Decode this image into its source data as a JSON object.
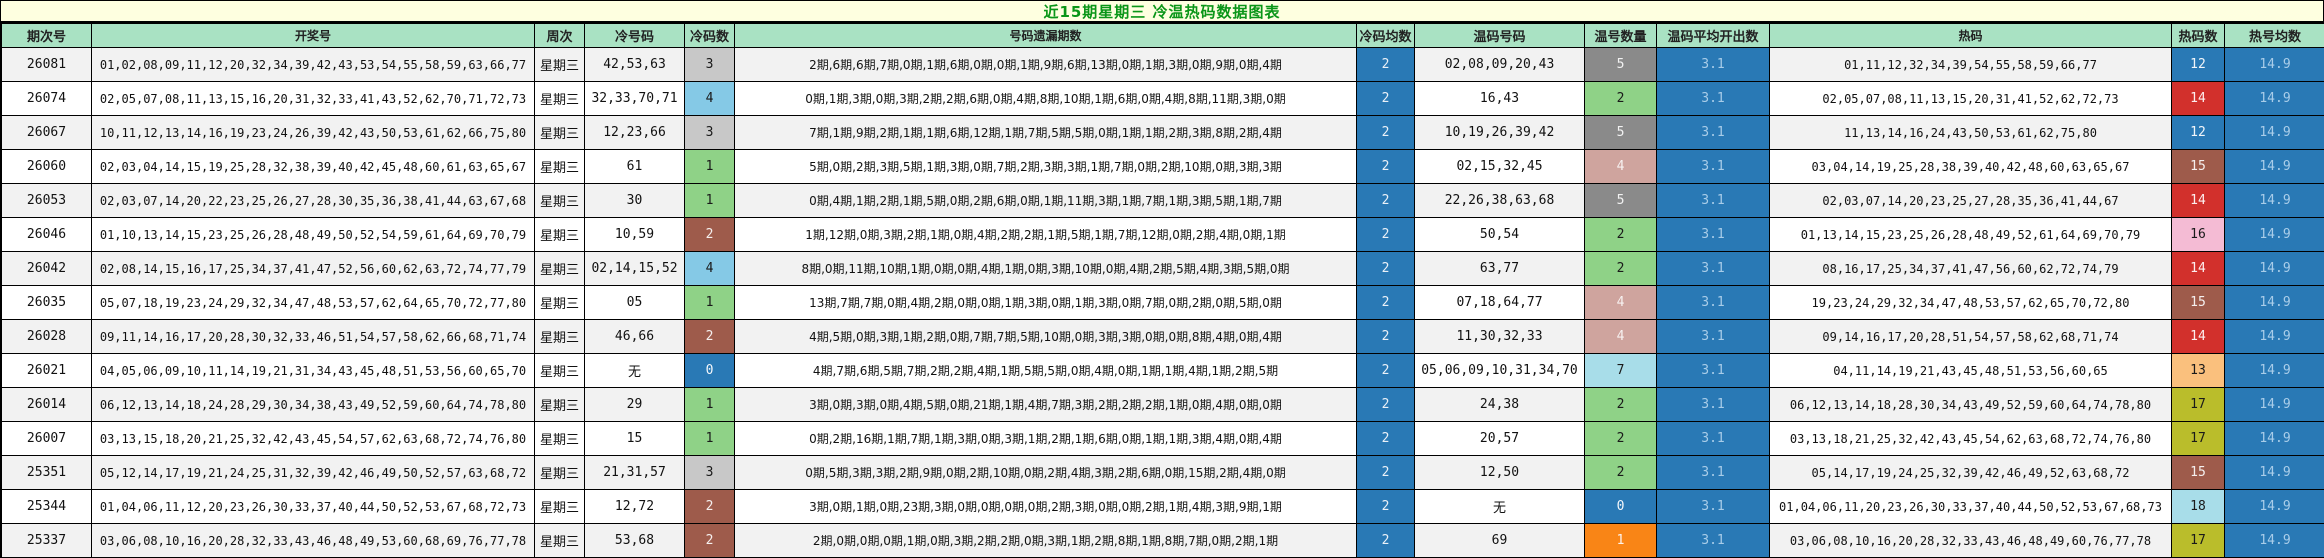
{
  "title": "近15期星期三  冷温热码数据图表",
  "chart_data": {
    "type": "table",
    "title": "近15期星期三  冷温热码数据图表",
    "columns": [
      "期次号",
      "开奖号",
      "周次",
      "冷号码",
      "冷码数",
      "号码遗漏期数",
      "冷码均数",
      "温码号码",
      "温号数量",
      "温码平均开出数",
      "热码",
      "热码数",
      "热号均数"
    ],
    "rows": [
      {
        "period": "26081",
        "draw_numbers": "01,02,08,09,11,12,20,32,34,39,42,43,53,54,55,58,59,63,66,77",
        "week": "星期三",
        "cold_numbers": "42,53,63",
        "cold_count": 3,
        "miss_periods": "2期,6期,6期,7期,0期,1期,6期,0期,0期,1期,9期,6期,13期,0期,1期,3期,0期,9期,0期,4期",
        "cold_avg": "2",
        "warm_numbers": "02,08,09,20,43",
        "warm_count": 5,
        "warm_avg": "3.1",
        "hot_numbers": "01,11,12,32,34,39,54,55,58,59,66,77",
        "hot_count": 12,
        "hot_avg": "14.9"
      },
      {
        "period": "26074",
        "draw_numbers": "02,05,07,08,11,13,15,16,20,31,32,33,41,43,52,62,70,71,72,73",
        "week": "星期三",
        "cold_numbers": "32,33,70,71",
        "cold_count": 4,
        "miss_periods": "0期,1期,3期,0期,3期,2期,2期,6期,0期,4期,8期,10期,1期,6期,0期,4期,8期,11期,3期,0期",
        "cold_avg": "2",
        "warm_numbers": "16,43",
        "warm_count": 2,
        "warm_avg": "3.1",
        "hot_numbers": "02,05,07,08,11,13,15,20,31,41,52,62,72,73",
        "hot_count": 14,
        "hot_avg": "14.9"
      },
      {
        "period": "26067",
        "draw_numbers": "10,11,12,13,14,16,19,23,24,26,39,42,43,50,53,61,62,66,75,80",
        "week": "星期三",
        "cold_numbers": "12,23,66",
        "cold_count": 3,
        "miss_periods": "7期,1期,9期,2期,1期,1期,6期,12期,1期,7期,5期,5期,0期,1期,1期,2期,3期,8期,2期,4期",
        "cold_avg": "2",
        "warm_numbers": "10,19,26,39,42",
        "warm_count": 5,
        "warm_avg": "3.1",
        "hot_numbers": "11,13,14,16,24,43,50,53,61,62,75,80",
        "hot_count": 12,
        "hot_avg": "14.9"
      },
      {
        "period": "26060",
        "draw_numbers": "02,03,04,14,15,19,25,28,32,38,39,40,42,45,48,60,61,63,65,67",
        "week": "星期三",
        "cold_numbers": "61",
        "cold_count": 1,
        "miss_periods": "5期,0期,2期,3期,5期,1期,3期,0期,7期,2期,3期,3期,1期,7期,0期,2期,10期,0期,3期,3期",
        "cold_avg": "2",
        "warm_numbers": "02,15,32,45",
        "warm_count": 4,
        "warm_avg": "3.1",
        "hot_numbers": "03,04,14,19,25,28,38,39,40,42,48,60,63,65,67",
        "hot_count": 15,
        "hot_avg": "14.9"
      },
      {
        "period": "26053",
        "draw_numbers": "02,03,07,14,20,22,23,25,26,27,28,30,35,36,38,41,44,63,67,68",
        "week": "星期三",
        "cold_numbers": "30",
        "cold_count": 1,
        "miss_periods": "0期,4期,1期,2期,1期,5期,0期,2期,6期,0期,1期,11期,3期,1期,7期,1期,3期,5期,1期,7期",
        "cold_avg": "2",
        "warm_numbers": "22,26,38,63,68",
        "warm_count": 5,
        "warm_avg": "3.1",
        "hot_numbers": "02,03,07,14,20,23,25,27,28,35,36,41,44,67",
        "hot_count": 14,
        "hot_avg": "14.9"
      },
      {
        "period": "26046",
        "draw_numbers": "01,10,13,14,15,23,25,26,28,48,49,50,52,54,59,61,64,69,70,79",
        "week": "星期三",
        "cold_numbers": "10,59",
        "cold_count": 2,
        "miss_periods": "1期,12期,0期,3期,2期,1期,0期,4期,2期,2期,1期,5期,1期,7期,12期,0期,2期,4期,0期,1期",
        "cold_avg": "2",
        "warm_numbers": "50,54",
        "warm_count": 2,
        "warm_avg": "3.1",
        "hot_numbers": "01,13,14,15,23,25,26,28,48,49,52,61,64,69,70,79",
        "hot_count": 16,
        "hot_avg": "14.9"
      },
      {
        "period": "26042",
        "draw_numbers": "02,08,14,15,16,17,25,34,37,41,47,52,56,60,62,63,72,74,77,79",
        "week": "星期三",
        "cold_numbers": "02,14,15,52",
        "cold_count": 4,
        "miss_periods": "8期,0期,11期,10期,1期,0期,0期,4期,1期,0期,3期,10期,0期,4期,2期,5期,4期,3期,5期,0期",
        "cold_avg": "2",
        "warm_numbers": "63,77",
        "warm_count": 2,
        "warm_avg": "3.1",
        "hot_numbers": "08,16,17,25,34,37,41,47,56,60,62,72,74,79",
        "hot_count": 14,
        "hot_avg": "14.9"
      },
      {
        "period": "26035",
        "draw_numbers": "05,07,18,19,23,24,29,32,34,47,48,53,57,62,64,65,70,72,77,80",
        "week": "星期三",
        "cold_numbers": "05",
        "cold_count": 1,
        "miss_periods": "13期,7期,7期,0期,4期,2期,0期,0期,1期,3期,0期,1期,3期,0期,7期,0期,2期,0期,5期,0期",
        "cold_avg": "2",
        "warm_numbers": "07,18,64,77",
        "warm_count": 4,
        "warm_avg": "3.1",
        "hot_numbers": "19,23,24,29,32,34,47,48,53,57,62,65,70,72,80",
        "hot_count": 15,
        "hot_avg": "14.9"
      },
      {
        "period": "26028",
        "draw_numbers": "09,11,14,16,17,20,28,30,32,33,46,51,54,57,58,62,66,68,71,74",
        "week": "星期三",
        "cold_numbers": "46,66",
        "cold_count": 2,
        "miss_periods": "4期,5期,0期,3期,1期,2期,0期,7期,7期,5期,10期,0期,3期,3期,0期,0期,8期,4期,0期,4期",
        "cold_avg": "2",
        "warm_numbers": "11,30,32,33",
        "warm_count": 4,
        "warm_avg": "3.1",
        "hot_numbers": "09,14,16,17,20,28,51,54,57,58,62,68,71,74",
        "hot_count": 14,
        "hot_avg": "14.9"
      },
      {
        "period": "26021",
        "draw_numbers": "04,05,06,09,10,11,14,19,21,31,34,43,45,48,51,53,56,60,65,70",
        "week": "星期三",
        "cold_numbers": "无",
        "cold_count": 0,
        "miss_periods": "4期,7期,6期,5期,7期,2期,2期,4期,1期,5期,5期,0期,4期,0期,1期,1期,4期,1期,2期,5期",
        "cold_avg": "2",
        "warm_numbers": "05,06,09,10,31,34,70",
        "warm_count": 7,
        "warm_avg": "3.1",
        "hot_numbers": "04,11,14,19,21,43,45,48,51,53,56,60,65",
        "hot_count": 13,
        "hot_avg": "14.9"
      },
      {
        "period": "26014",
        "draw_numbers": "06,12,13,14,18,24,28,29,30,34,38,43,49,52,59,60,64,74,78,80",
        "week": "星期三",
        "cold_numbers": "29",
        "cold_count": 1,
        "miss_periods": "3期,0期,3期,0期,4期,5期,0期,21期,1期,4期,7期,3期,2期,2期,2期,1期,0期,4期,0期,0期",
        "cold_avg": "2",
        "warm_numbers": "24,38",
        "warm_count": 2,
        "warm_avg": "3.1",
        "hot_numbers": "06,12,13,14,18,28,30,34,43,49,52,59,60,64,74,78,80",
        "hot_count": 17,
        "hot_avg": "14.9"
      },
      {
        "period": "26007",
        "draw_numbers": "03,13,15,18,20,21,25,32,42,43,45,54,57,62,63,68,72,74,76,80",
        "week": "星期三",
        "cold_numbers": "15",
        "cold_count": 1,
        "miss_periods": "0期,2期,16期,1期,7期,1期,3期,0期,3期,1期,2期,1期,6期,0期,1期,1期,3期,4期,0期,4期",
        "cold_avg": "2",
        "warm_numbers": "20,57",
        "warm_count": 2,
        "warm_avg": "3.1",
        "hot_numbers": "03,13,18,21,25,32,42,43,45,54,62,63,68,72,74,76,80",
        "hot_count": 17,
        "hot_avg": "14.9"
      },
      {
        "period": "25351",
        "draw_numbers": "05,12,14,17,19,21,24,25,31,32,39,42,46,49,50,52,57,63,68,72",
        "week": "星期三",
        "cold_numbers": "21,31,57",
        "cold_count": 3,
        "miss_periods": "0期,5期,3期,3期,2期,9期,0期,2期,10期,0期,2期,4期,3期,2期,6期,0期,15期,2期,4期,0期",
        "cold_avg": "2",
        "warm_numbers": "12,50",
        "warm_count": 2,
        "warm_avg": "3.1",
        "hot_numbers": "05,14,17,19,24,25,32,39,42,46,49,52,63,68,72",
        "hot_count": 15,
        "hot_avg": "14.9"
      },
      {
        "period": "25344",
        "draw_numbers": "01,04,06,11,12,20,23,26,30,33,37,40,44,50,52,53,67,68,72,73",
        "week": "星期三",
        "cold_numbers": "12,72",
        "cold_count": 2,
        "miss_periods": "3期,0期,1期,0期,23期,3期,0期,0期,0期,0期,2期,3期,0期,0期,2期,1期,4期,3期,9期,1期",
        "cold_avg": "2",
        "warm_numbers": "无",
        "warm_count": 0,
        "warm_avg": "3.1",
        "hot_numbers": "01,04,06,11,20,23,26,30,33,37,40,44,50,52,53,67,68,73",
        "hot_count": 18,
        "hot_avg": "14.9"
      },
      {
        "period": "25337",
        "draw_numbers": "03,06,08,10,16,20,28,32,33,43,46,48,49,53,60,68,69,76,77,78",
        "week": "星期三",
        "cold_numbers": "53,68",
        "cold_count": 2,
        "miss_periods": "2期,0期,0期,0期,1期,0期,3期,2期,2期,0期,3期,1期,2期,8期,1期,8期,7期,0期,2期,1期",
        "cold_avg": "2",
        "warm_numbers": "69",
        "warm_count": 1,
        "warm_avg": "3.1",
        "hot_numbers": "03,06,08,10,16,20,28,32,33,43,46,48,49,60,76,77,78",
        "hot_count": 17,
        "hot_avg": "14.9"
      }
    ]
  },
  "colors": {
    "title_bg": "#feffe0",
    "title_text": "#0a9618",
    "header_bg": "#a9e2c3",
    "row_alt_bg": "#f2f2f2",
    "blue": "#2979b5",
    "avg_text": "#a9cde9",
    "cold_avg_text": "#eaf1f8",
    "cold_count": {
      "0": {
        "bg": "#2979b5",
        "fg": "#f2f6fa"
      },
      "1": {
        "bg": "#8fd287",
        "fg": "#1a1a1a"
      },
      "2": {
        "bg": "#9e5b4b",
        "fg": "#f5efee"
      },
      "3": {
        "bg": "#c8c8c8",
        "fg": "#1a1a1a"
      },
      "4": {
        "bg": "#85c9e6",
        "fg": "#1a1a1a"
      }
    },
    "warm_count": {
      "0": {
        "bg": "#2979b5",
        "fg": "#f2f6fa"
      },
      "1": {
        "bg": "#f98516",
        "fg": "#fdf3ec"
      },
      "2": {
        "bg": "#8fd287",
        "fg": "#1a1a1a"
      },
      "4": {
        "bg": "#cfa49e",
        "fg": "#f7f1f0"
      },
      "5": {
        "bg": "#8a8a8a",
        "fg": "#f2f2f2"
      },
      "7": {
        "bg": "#a8dde9",
        "fg": "#1a1a1a"
      }
    },
    "hot_count": {
      "12": {
        "bg": "#2979b5",
        "fg": "#f2f6fa"
      },
      "13": {
        "bg": "#fac07d",
        "fg": "#1a1a1a"
      },
      "14": {
        "bg": "#d2302c",
        "fg": "#fdeeee"
      },
      "15": {
        "bg": "#9e5b4b",
        "fg": "#f5efee"
      },
      "16": {
        "bg": "#f4bbd4",
        "fg": "#1a1a1a"
      },
      "17": {
        "bg": "#babd2b",
        "fg": "#1a1a1a"
      },
      "18": {
        "bg": "#a8dde9",
        "fg": "#1a1a1a"
      }
    }
  }
}
